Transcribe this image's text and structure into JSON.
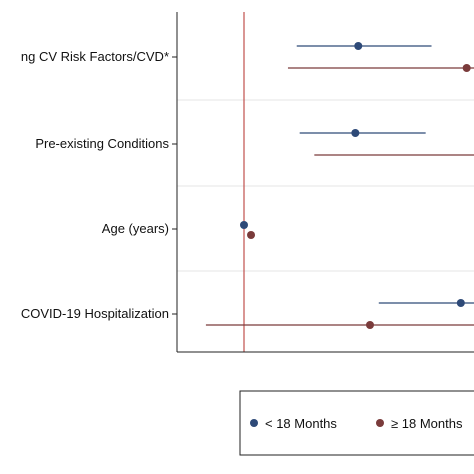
{
  "chart_data": {
    "type": "scatter",
    "subtype": "forest-plot",
    "title": "",
    "xlabel": "",
    "ylabel": "",
    "categories": [
      "ng CV Risk Factors/CVD*",
      "Pre-existing Conditions",
      "Age (years)",
      "COVID-19 Hospitalization"
    ],
    "x_ticks": [
      5
    ],
    "reference_line_x": 1,
    "series": [
      {
        "name": "< 18 Months",
        "color": "#2e4a78",
        "points": [
          {
            "category": "ng CV Risk Factors/CVD*",
            "x": 2.95,
            "lo": 1.9,
            "hi": 4.2
          },
          {
            "category": "Pre-existing Conditions",
            "x": 2.9,
            "lo": 1.95,
            "hi": 4.1
          },
          {
            "category": "Age (years)",
            "x": 1.0,
            "lo": 1.0,
            "hi": 1.0
          },
          {
            "category": "COVID-19 Hospitalization",
            "x": 4.7,
            "lo": 3.3,
            "hi": 6.5
          }
        ]
      },
      {
        "name": "≥ 18 Months",
        "color": "#7a3b3b",
        "points": [
          {
            "category": "ng CV Risk Factors/CVD*",
            "x": 4.8,
            "lo": 1.75,
            "hi": 6.5
          },
          {
            "category": "Pre-existing Conditions",
            "x": 5.1,
            "lo": 2.2,
            "hi": 6.5
          },
          {
            "category": "Age (years)",
            "x": 1.12,
            "lo": 1.12,
            "hi": 1.12
          },
          {
            "category": "COVID-19 Hospitalization",
            "x": 3.15,
            "lo": 0.35,
            "hi": 6.3
          }
        ]
      }
    ],
    "legend": {
      "placement": "bottom",
      "entries": [
        "< 18 Months",
        "≥ 18 Months"
      ]
    },
    "grid": true,
    "ref_line_color": "#c0504d",
    "grid_color": "#e6e6e6"
  }
}
